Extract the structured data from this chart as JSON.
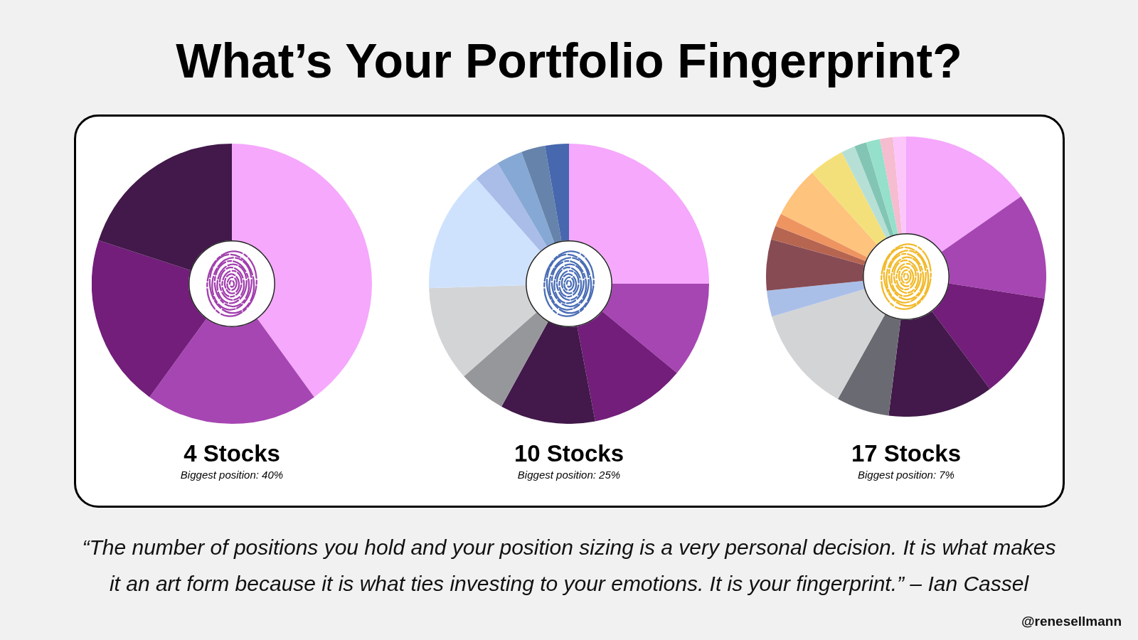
{
  "chart_data": [
    {
      "type": "other",
      "title": "What’s Your Portfolio Fingerprint?"
    },
    {
      "type": "donut",
      "title": "4 Stocks",
      "subtitle": "Biggest position: 40%",
      "categories": [
        null,
        null,
        null,
        null
      ],
      "values": [
        40,
        20,
        20,
        20
      ],
      "colors": [
        "#f5a8fc",
        "#a646b2",
        "#721e7a",
        "#42194a"
      ]
    },
    {
      "type": "donut",
      "title": "10 Stocks",
      "subtitle": "Biggest position: 25%",
      "categories": [
        null,
        null,
        null,
        null,
        null,
        null,
        null,
        null,
        null,
        null,
        null
      ],
      "values": [
        25,
        11,
        11,
        11,
        5.5,
        11,
        14,
        3,
        3,
        2.75,
        2.75
      ],
      "colors": [
        "#f5a8fc",
        "#a646b2",
        "#721e7a",
        "#42194a",
        "#96979b",
        "#d3d4d6",
        "#cfe2fd",
        "#aabde8",
        "#86a8d4",
        "#6683ab",
        "#4767ae"
      ]
    },
    {
      "type": "donut",
      "title": "17 Stocks",
      "subtitle": "Biggest position: 7%",
      "categories": [
        null,
        null,
        null,
        null,
        null,
        null,
        null,
        null,
        null,
        null,
        null,
        null,
        null,
        null,
        null,
        null,
        null
      ],
      "values": [
        15.3,
        12.2,
        12.3,
        12.2,
        6.1,
        12.3,
        3.0,
        5.9,
        1.6,
        1.5,
        5.9,
        4.1,
        1.6,
        1.4,
        1.6,
        1.5,
        1.5
      ],
      "colors": [
        "#f5a8fc",
        "#a646b2",
        "#721e7a",
        "#42194a",
        "#6a6b72",
        "#d3d4d6",
        "#aabfe8",
        "#874b53",
        "#b66551",
        "#ee9461",
        "#fec37c",
        "#f4e07a",
        "#b6e0d6",
        "#83c5b4",
        "#95e0ca",
        "#f6bcd0",
        "#fcc6fb"
      ]
    },
    {
      "type": "other",
      "annotations": [
        "“The number of positions you hold and your position sizing is a very personal decision. It is what makes it an art form because it is what ties investing to your emotions. It is your fingerprint.” – Ian Cassel",
        "@renesellmann"
      ]
    }
  ]
}
